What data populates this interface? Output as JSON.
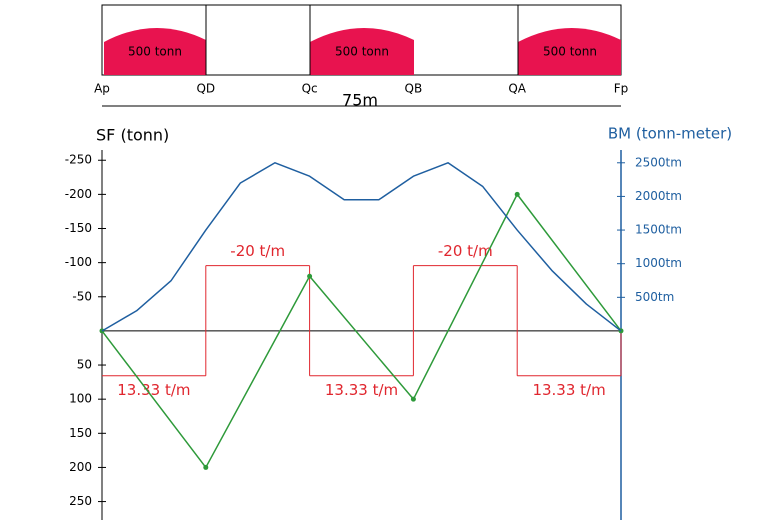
{
  "ship": {
    "holds": [
      "500 tonn",
      "500 tonn",
      "500 tonn"
    ],
    "stations": [
      "Ap",
      "QD",
      "Qc",
      "QB",
      "QA",
      "Fp"
    ],
    "length": "75m"
  },
  "chart_data": {
    "type": "line",
    "y_label": "SF (tonn)",
    "y2_label": "BM (tonn-meter)",
    "xlim": [
      0,
      75
    ],
    "ylim": [
      277,
      -265
    ],
    "yticks": [
      -250,
      -200,
      -150,
      -100,
      -50,
      50,
      100,
      150,
      200,
      250
    ],
    "y2lim": [
      -2810,
      2690
    ],
    "y2ticks": [
      {
        "value": 2500,
        "label": "2500tm"
      },
      {
        "value": 2000,
        "label": "2000tm"
      },
      {
        "value": 1500,
        "label": "1500tm"
      },
      {
        "value": 1000,
        "label": "1000tm"
      },
      {
        "value": 500,
        "label": "500tm"
      }
    ],
    "y3lim": [
      57,
      -55
    ],
    "load": {
      "color": "#e0262e",
      "axis": "y3",
      "bins": [
        0,
        15,
        30,
        45,
        60,
        75
      ],
      "values": [
        13.33,
        -20,
        13.33,
        -20,
        13.33
      ],
      "value_labels": [
        "13.33 t/m",
        "-20 t/m",
        "13.33 t/m",
        "-20 t/m",
        "13.33 t/m"
      ]
    },
    "series": [
      {
        "color": "#2e9a3a",
        "x": [
          0,
          15,
          30,
          45,
          60,
          75
        ],
        "values": [
          0,
          200,
          -80,
          100,
          -200,
          0
        ]
      },
      {
        "color": "#1f5fa0",
        "axis": "y2",
        "x": [
          0,
          5,
          10,
          15,
          20,
          25,
          30,
          35,
          40,
          45,
          50,
          55,
          60,
          65,
          70,
          75
        ],
        "values": [
          0,
          300,
          750,
          1500,
          2200,
          2500,
          2300,
          1950,
          1950,
          2300,
          2500,
          2150,
          1500,
          900,
          400,
          0
        ]
      }
    ]
  }
}
